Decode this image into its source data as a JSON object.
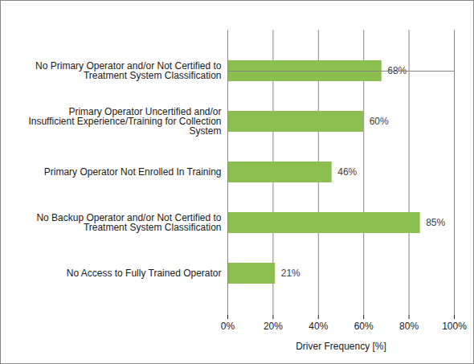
{
  "chart_data": {
    "type": "bar",
    "orientation": "horizontal",
    "categories": [
      "No Primary Operator and/or Not Certified to Treatment System Classification",
      "Primary Operator Uncertified and/or Insufficient Experience/Training for Collection System",
      "Primary Operator Not Enrolled In Training",
      "No Backup Operator and/or Not Certified to Treatment System Classification",
      "No Access to Fully Trained Operator"
    ],
    "values": [
      68,
      60,
      46,
      85,
      21
    ],
    "value_labels": [
      "68%",
      "60%",
      "46%",
      "85%",
      "21%"
    ],
    "data_labels": true,
    "color": "#8cbf4f",
    "x_label": "Driver Frequency [%]",
    "xlim": [
      0,
      100
    ],
    "xticks": [
      {
        "value": 0,
        "label": "0%"
      },
      {
        "value": 20,
        "label": "20%"
      },
      {
        "value": 40,
        "label": "40%"
      },
      {
        "value": 60,
        "label": "60%"
      },
      {
        "value": 80,
        "label": "80%"
      },
      {
        "value": 100,
        "label": "100%"
      }
    ],
    "grid": true
  }
}
